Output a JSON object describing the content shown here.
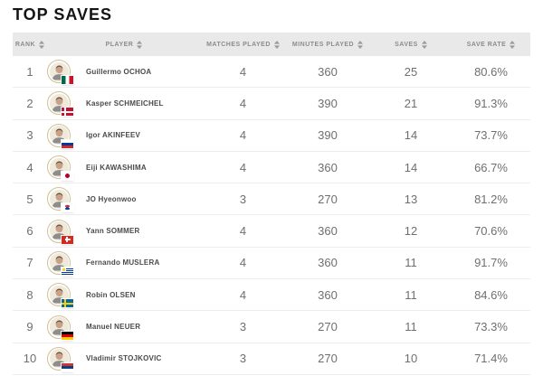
{
  "title": "TOP SAVES",
  "colors": {
    "header_bg": "#e9e9e9",
    "header_text": "#8c8c8c",
    "row_text": "#6f6f6f",
    "player_name_text": "#4a4a4a",
    "avatar_ring": "#cfc095",
    "row_border": "#ededed",
    "title_color": "#141414"
  },
  "table": {
    "columns": [
      {
        "key": "rank",
        "label": "RANK"
      },
      {
        "key": "player",
        "label": "PLAYER"
      },
      {
        "key": "matches_played",
        "label": "MATCHES PLAYED"
      },
      {
        "key": "minutes_played",
        "label": "MINUTES PLAYED"
      },
      {
        "key": "saves",
        "label": "SAVES"
      },
      {
        "key": "save_rate",
        "label": "SAVE RATE"
      }
    ],
    "rows": [
      {
        "rank": "1",
        "player": "Guillermo OCHOA",
        "country": "Mexico",
        "flag": "mex",
        "matches_played": "4",
        "minutes_played": "360",
        "saves": "25",
        "save_rate": "80.6%"
      },
      {
        "rank": "2",
        "player": "Kasper SCHMEICHEL",
        "country": "Denmark",
        "flag": "den",
        "matches_played": "4",
        "minutes_played": "390",
        "saves": "21",
        "save_rate": "91.3%"
      },
      {
        "rank": "3",
        "player": "Igor AKINFEEV",
        "country": "Russia",
        "flag": "rus",
        "matches_played": "4",
        "minutes_played": "390",
        "saves": "14",
        "save_rate": "73.7%"
      },
      {
        "rank": "4",
        "player": "Eiji KAWASHIMA",
        "country": "Japan",
        "flag": "jpn",
        "matches_played": "4",
        "minutes_played": "360",
        "saves": "14",
        "save_rate": "66.7%"
      },
      {
        "rank": "5",
        "player": "JO Hyeonwoo",
        "country": "Korea Republic",
        "flag": "kor",
        "matches_played": "3",
        "minutes_played": "270",
        "saves": "13",
        "save_rate": "81.2%"
      },
      {
        "rank": "6",
        "player": "Yann SOMMER",
        "country": "Switzerland",
        "flag": "sui",
        "matches_played": "4",
        "minutes_played": "360",
        "saves": "12",
        "save_rate": "70.6%"
      },
      {
        "rank": "7",
        "player": "Fernando MUSLERA",
        "country": "Uruguay",
        "flag": "uru",
        "matches_played": "4",
        "minutes_played": "360",
        "saves": "11",
        "save_rate": "91.7%"
      },
      {
        "rank": "8",
        "player": "Robin OLSEN",
        "country": "Sweden",
        "flag": "swe",
        "matches_played": "4",
        "minutes_played": "360",
        "saves": "11",
        "save_rate": "84.6%"
      },
      {
        "rank": "9",
        "player": "Manuel NEUER",
        "country": "Germany",
        "flag": "ger",
        "matches_played": "3",
        "minutes_played": "270",
        "saves": "11",
        "save_rate": "73.3%"
      },
      {
        "rank": "10",
        "player": "Vladimir STOJKOVIC",
        "country": "Serbia",
        "flag": "srb",
        "matches_played": "3",
        "minutes_played": "270",
        "saves": "10",
        "save_rate": "71.4%"
      }
    ]
  }
}
